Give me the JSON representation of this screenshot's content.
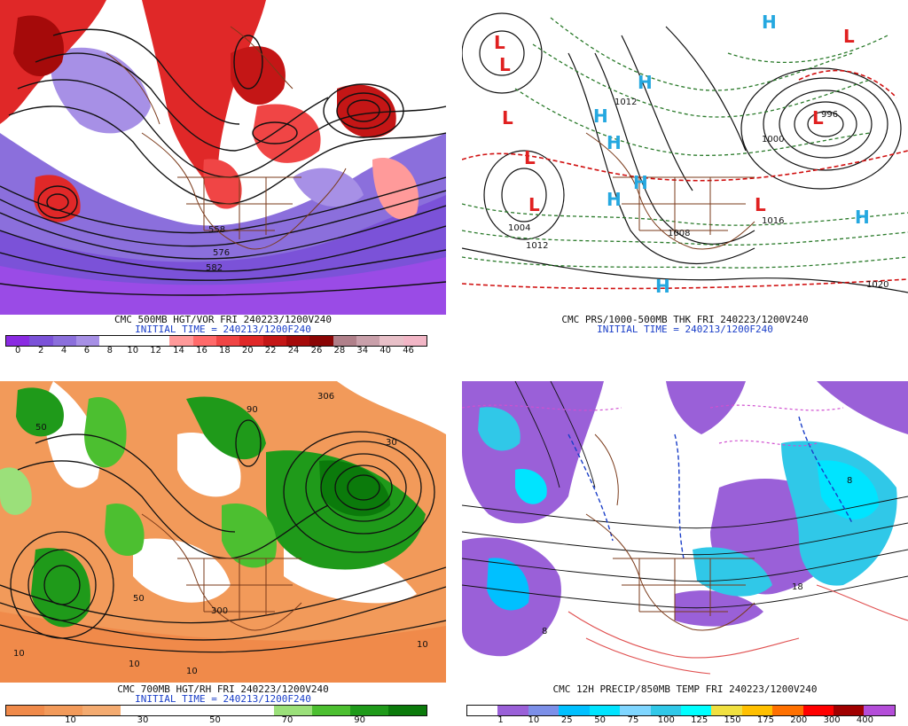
{
  "panels": [
    {
      "id": "vort500",
      "caption1": "CMC 500MB HGT/VOR FRI 240223/1200V240",
      "caption2": "INITIAL TIME = 240213/1200F240",
      "legend_colors": [
        "#8a2be2",
        "#7b52d8",
        "#8b6fdc",
        "#a790e6",
        "#ffffff",
        "#ffffff",
        "#ffffff",
        "#ff9a9a",
        "#ff6a6a",
        "#f04545",
        "#e02828",
        "#c41616",
        "#a50a0a",
        "#8a0505",
        "#b0808a",
        "#c9a0aa",
        "#e8c0c8",
        "#f2b6c6"
      ],
      "legend_ticks": [
        "0",
        "2",
        "4",
        "6",
        "8",
        "10",
        "12",
        "14",
        "16",
        "18",
        "20",
        "22",
        "24",
        "26",
        "28",
        "34",
        "40",
        "46"
      ],
      "map_labels": [
        "582",
        "576",
        "558"
      ]
    },
    {
      "id": "thk",
      "caption1": "CMC PRS/1000-500MB THK FRI 240223/1200V240",
      "caption2": "INITIAL TIME = 240213/1200F240",
      "highs": [
        "H",
        "H",
        "H",
        "H",
        "H",
        "H",
        "H",
        "H"
      ],
      "lows": [
        "L",
        "L",
        "L",
        "L",
        "L",
        "L",
        "L",
        "L"
      ],
      "map_labels": [
        "1020",
        "1012",
        "1004",
        "1008",
        "1016",
        "996",
        "1000",
        "1012"
      ]
    },
    {
      "id": "rh700",
      "caption1": "CMC 700MB HGT/RH FRI 240223/1200V240",
      "caption2": "INITIAL TIME = 240213/1200F240",
      "legend_colors": [
        "#f08a4a",
        "#f29a5a",
        "#f4ab70",
        "#ffffff",
        "#ffffff",
        "#ffffff",
        "#ffffff",
        "#9be07a",
        "#4cbf30",
        "#1f9a1a",
        "#0b7a0b"
      ],
      "legend_ticks": [
        "10",
        "30",
        "50",
        "70",
        "90"
      ],
      "map_labels": [
        "10",
        "10",
        "10",
        "10",
        "50",
        "50",
        "30",
        "90",
        "300",
        "306"
      ]
    },
    {
      "id": "precip",
      "caption1": "CMC 12H PRECIP/850MB TEMP FRI 240223/1200V240",
      "legend_colors": [
        "#ffffff",
        "#9a60d8",
        "#7c8fe8",
        "#00c0ff",
        "#00e4ff",
        "#7fd6ff",
        "#30c8e8",
        "#00ffff",
        "#f0e040",
        "#ffc000",
        "#ff7000",
        "#ff0000",
        "#a00000",
        "#b44dd9"
      ],
      "legend_ticks": [
        "1",
        "10",
        "25",
        "50",
        "75",
        "100",
        "125",
        "150",
        "175",
        "200",
        "300",
        "400"
      ],
      "map_labels": [
        "18",
        "8",
        "8"
      ]
    }
  ]
}
